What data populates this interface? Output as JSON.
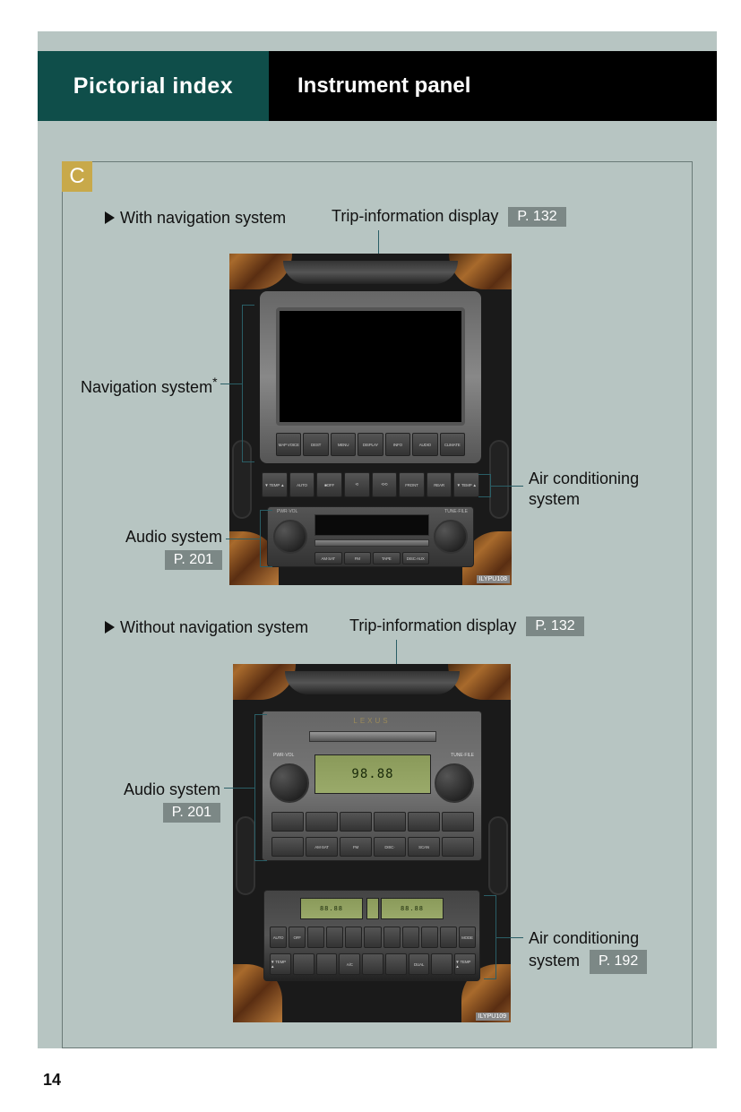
{
  "page_number": "14",
  "header": {
    "title": "Pictorial index",
    "subtitle": "Instrument panel"
  },
  "section_badge": "C",
  "colors": {
    "page_bg": "#b7c5c2",
    "teal": "#0f4e4a",
    "badge": "#c8a94a",
    "ref_bg": "#7c8886",
    "leader": "#2a5e66",
    "wood_dark": "#4a2a10",
    "wood_light": "#a86a2c",
    "lcd": "#9aaa6a"
  },
  "variant_a": {
    "heading": "With navigation system",
    "labels": {
      "trip": {
        "text": "Trip-information display",
        "page": "P. 132"
      },
      "nav": {
        "text": "Navigation system",
        "note": "*"
      },
      "ac": {
        "text": "Air conditioning system"
      },
      "audio": {
        "text": "Audio system",
        "page": "P. 201"
      }
    },
    "image": {
      "ref": "ILYPU108",
      "nav_buttons": [
        "MAP VOICE",
        "DEST",
        "MENU",
        "DISPLAY",
        "INFO",
        "AUDIO",
        "CLIMATE"
      ],
      "ac_buttons": [
        "▼ TEMP ▲",
        "AUTO",
        "■OFF",
        "⟲",
        "⟲⟲",
        "FRONT",
        "REAR",
        "▼ TEMP ▲"
      ],
      "radio_top": [
        "SEEK TRACK",
        "",
        "",
        "CD"
      ],
      "radio_knob_l": "PWR·VOL",
      "radio_knob_r": "TUNE·FILE",
      "radio_bottom": [
        "AM·SAT",
        "FM",
        "TAPE",
        "DISC·AUX"
      ]
    }
  },
  "variant_b": {
    "heading": "Without navigation system",
    "labels": {
      "trip": {
        "text": "Trip-information display",
        "page": "P. 132"
      },
      "audio": {
        "text": "Audio system",
        "page": "P. 201"
      },
      "ac": {
        "text": "Air conditioning system",
        "page": "P. 192"
      }
    },
    "image": {
      "ref": "ILYPU109",
      "brand": "LEXUS",
      "lcd_main": "98.88",
      "radio_knob_l": "PWR·VOL",
      "radio_knob_r": "TUNE·FILE",
      "radio_buttons": [
        "",
        "AM·SAT",
        "FM",
        "DISC·",
        "SCAN",
        ""
      ],
      "ac_lcd_l": "88.88",
      "ac_lcd_r": "88.88",
      "ac_buttons_row": [
        "AUTO",
        "OFF",
        "",
        "",
        "",
        "",
        "",
        "",
        "",
        "",
        "MODE"
      ],
      "ac_buttons_bot": [
        "▼ TEMP ▲",
        "",
        "",
        "A/C",
        "",
        "",
        "DUAL",
        "",
        "▼ TEMP ▲"
      ]
    }
  }
}
